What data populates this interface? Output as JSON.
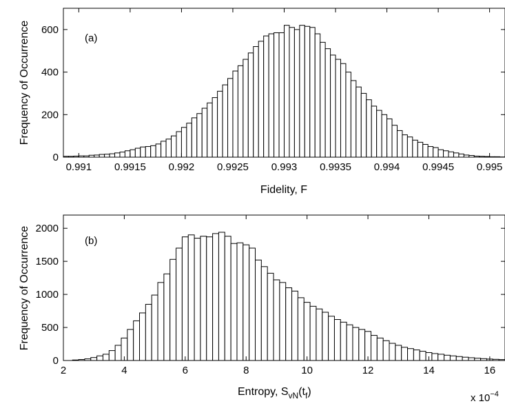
{
  "chart_data": [
    {
      "type": "bar",
      "panel_label": "(a)",
      "xlabel": "Fidelity, F",
      "ylabel": "Frequency of Occurrence",
      "xlim": [
        0.99085,
        0.99515
      ],
      "ylim": [
        0,
        700
      ],
      "xticks": [
        0.991,
        0.9915,
        0.992,
        0.9925,
        0.993,
        0.9935,
        0.994,
        0.9945,
        0.995
      ],
      "xtick_labels": [
        "0.991",
        "0.9915",
        "0.992",
        "0.9925",
        "0.993",
        "0.9935",
        "0.994",
        "0.9945",
        "0.995"
      ],
      "yticks": [
        0,
        200,
        400,
        600
      ],
      "ytick_labels": [
        "0",
        "200",
        "400",
        "600"
      ],
      "bin_start": 0.99085,
      "bin_width": 5e-05,
      "values": [
        4,
        4,
        5,
        6,
        6,
        9,
        10,
        13,
        14,
        16,
        20,
        24,
        30,
        35,
        42,
        48,
        50,
        54,
        62,
        75,
        85,
        100,
        120,
        140,
        160,
        185,
        205,
        230,
        255,
        280,
        310,
        340,
        370,
        405,
        430,
        460,
        490,
        520,
        545,
        570,
        580,
        585,
        585,
        620,
        610,
        600,
        620,
        615,
        610,
        580,
        540,
        510,
        480,
        460,
        440,
        400,
        360,
        330,
        300,
        270,
        240,
        220,
        200,
        180,
        150,
        125,
        105,
        95,
        80,
        70,
        60,
        50,
        45,
        35,
        30,
        25,
        20,
        15,
        10,
        8,
        5,
        4,
        3,
        2,
        2,
        1
      ]
    },
    {
      "type": "bar",
      "panel_label": "(b)",
      "xlabel": "Entropy, S",
      "xlabel_sub1": "vN",
      "xlabel_mid": "(t",
      "xlabel_sub2": "f",
      "xlabel_end": ")",
      "ylabel": "Frequency of Occurrence",
      "scale_note": "x 10",
      "scale_exp": "−4",
      "xlim": [
        2,
        16.5
      ],
      "ylim": [
        0,
        2200
      ],
      "xticks": [
        2,
        4,
        6,
        8,
        10,
        12,
        14,
        16
      ],
      "xtick_labels": [
        "2",
        "4",
        "6",
        "8",
        "10",
        "12",
        "14",
        "16"
      ],
      "yticks": [
        0,
        500,
        1000,
        1500,
        2000
      ],
      "ytick_labels": [
        "0",
        "500",
        "1000",
        "1500",
        "2000"
      ],
      "bin_start": 2.3,
      "bin_width": 0.2,
      "values": [
        8,
        15,
        25,
        45,
        70,
        95,
        150,
        230,
        340,
        470,
        600,
        720,
        850,
        990,
        1180,
        1310,
        1530,
        1700,
        1870,
        1900,
        1850,
        1880,
        1870,
        1920,
        1940,
        1880,
        1770,
        1780,
        1750,
        1700,
        1520,
        1420,
        1320,
        1220,
        1180,
        1100,
        1050,
        950,
        880,
        820,
        780,
        730,
        670,
        620,
        580,
        540,
        500,
        470,
        440,
        380,
        340,
        300,
        260,
        230,
        200,
        180,
        160,
        140,
        120,
        105,
        95,
        80,
        70,
        60,
        50,
        42,
        35,
        28,
        22,
        18,
        14,
        10
      ]
    }
  ]
}
